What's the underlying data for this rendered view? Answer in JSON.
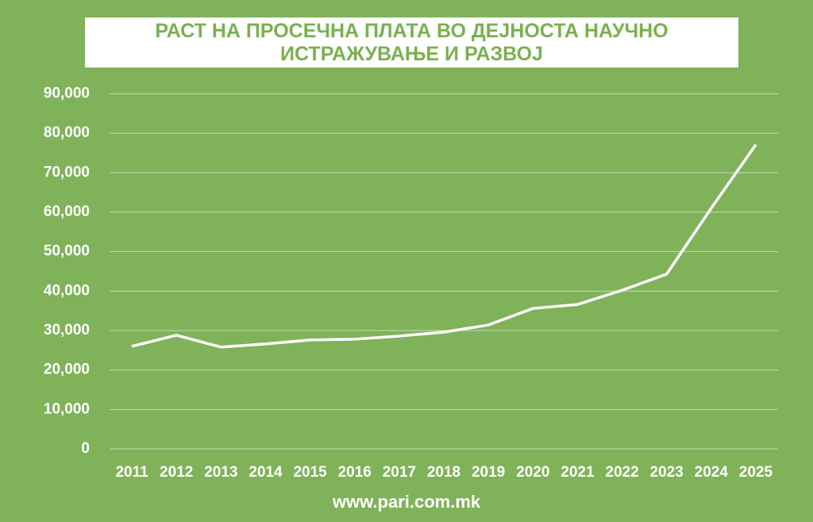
{
  "chart_data": {
    "type": "line",
    "title": "РАСТ НА ПРОСЕЧНА ПЛАТА ВО ДЕЈНОСТА НАУЧНО ИСТРАЖУВАЊЕ И РАЗВОЈ",
    "source": "www.pari.com.mk",
    "categories": [
      "2011",
      "2012",
      "2013",
      "2014",
      "2015",
      "2016",
      "2017",
      "2018",
      "2019",
      "2020",
      "2021",
      "2022",
      "2023",
      "2024",
      "2025"
    ],
    "series": [
      {
        "name": "Просечна плата",
        "color": "#ffffff",
        "values": [
          26000,
          28800,
          25800,
          26600,
          27600,
          27800,
          28600,
          29600,
          31400,
          35600,
          36600,
          40200,
          44300,
          61000,
          77100
        ]
      }
    ],
    "ylim": [
      0,
      90000
    ],
    "yticks": [
      0,
      {
        "value": 10000,
        "label": "10,000"
      },
      {
        "value": 20000,
        "label": "20,000"
      },
      {
        "value": 30000,
        "label": "30,000"
      },
      {
        "value": 40000,
        "label": "40,000"
      },
      {
        "value": 50000,
        "label": "50,000"
      },
      {
        "value": 60000,
        "label": "60,000"
      },
      {
        "value": 70000,
        "label": "70,000"
      },
      {
        "value": 80000,
        "label": "80,000"
      },
      {
        "value": 90000,
        "label": "90,000"
      }
    ],
    "grid": true,
    "background": "#80b25a",
    "title_color": "#7ab04f"
  }
}
